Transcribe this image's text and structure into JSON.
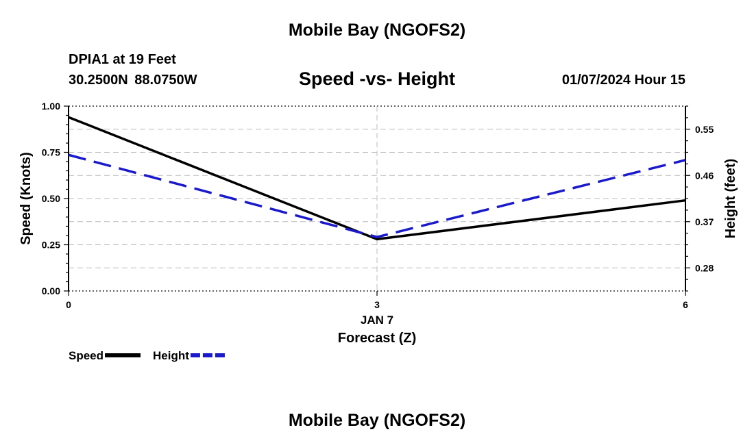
{
  "page_title": "Mobile Bay (NGOFS2)",
  "footer_title": "Mobile Bay (NGOFS2)",
  "station": "DPIA1 at 19 Feet",
  "coordinates": "30.2500N  88.0750W",
  "datetime": "01/07/2024 Hour 15",
  "chart_data": {
    "type": "line",
    "title": "Speed -vs- Height",
    "xlabel": "Forecast (Z)",
    "x_date_label": "JAN 7",
    "x": [
      0,
      3,
      6
    ],
    "x_tick_labels": [
      "0",
      "3",
      "6"
    ],
    "xlim": [
      0,
      6
    ],
    "ylabel": "Speed (Knots)",
    "ylim": [
      0,
      1.0
    ],
    "y_ticks": [
      "0.00",
      "0.25",
      "0.50",
      "0.75",
      "1.00"
    ],
    "y2label": "Height (feet)",
    "y2lim": [
      0.235,
      0.595
    ],
    "y2_ticks": [
      "0.28",
      "0.37",
      "0.46",
      "0.55"
    ],
    "grid": true,
    "series": [
      {
        "name": "Speed",
        "axis": "left",
        "color": "#000000",
        "style": "solid",
        "values": [
          0.94,
          0.28,
          0.49
        ]
      },
      {
        "name": "Height",
        "axis": "right",
        "color": "#1a1acc",
        "style": "dashed",
        "values": [
          0.5,
          0.34,
          0.49
        ]
      }
    ],
    "legend": [
      {
        "label": "Speed",
        "color": "#000000",
        "style": "solid"
      },
      {
        "label": "Height",
        "color": "#1a1acc",
        "style": "dashed"
      }
    ],
    "legend_position": "bottom-left"
  }
}
